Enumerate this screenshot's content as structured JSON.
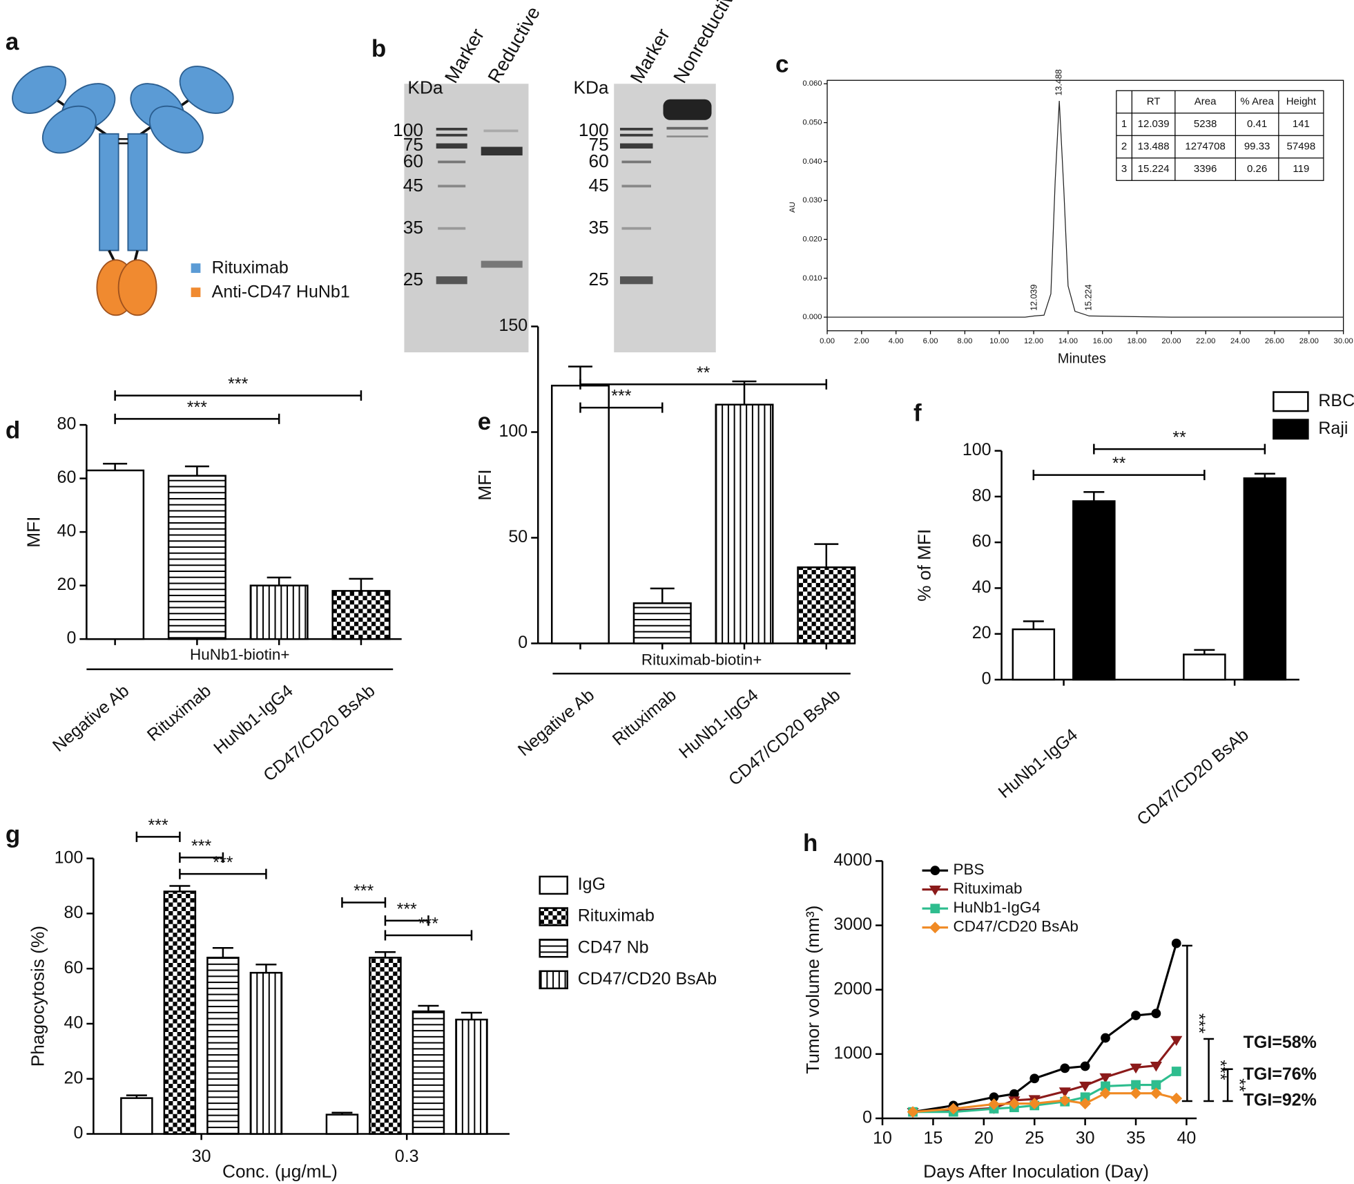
{
  "panel_labels": [
    "a",
    "b",
    "c",
    "d",
    "e",
    "f",
    "g",
    "h"
  ],
  "schematic": {
    "legend": [
      "Rituximab",
      "Anti-CD47 HuNb1"
    ],
    "colors": [
      "#5b9bd5",
      "#f08a30"
    ]
  },
  "gels": [
    {
      "unit": "KDa",
      "lanes": [
        "Marker",
        "Reductive"
      ],
      "markers": [
        "100",
        "75",
        "60",
        "45",
        "35",
        "25"
      ]
    },
    {
      "unit": "KDa",
      "lanes": [
        "Marker",
        "Nonreductive"
      ],
      "markers": [
        "100",
        "75",
        "60",
        "45",
        "35",
        "25"
      ]
    }
  ],
  "chart_data": [
    {
      "type": "line",
      "x_label": "Minutes",
      "y_label": "AU",
      "x": [
        0,
        5,
        11.5,
        12.039,
        12.6,
        13.0,
        13.25,
        13.488,
        13.75,
        14.0,
        14.4,
        15.224,
        20,
        30
      ],
      "values": [
        0,
        0,
        0,
        0.0003,
        0.0005,
        0.006,
        0.035,
        0.0556,
        0.033,
        0.008,
        0.0015,
        0.0003,
        0,
        0
      ],
      "color": "#222222",
      "xlim": [
        0,
        30
      ],
      "xticks": [
        {
          "value": 0,
          "label": "0.00"
        },
        {
          "value": 2,
          "label": "2.00"
        },
        {
          "value": 4,
          "label": "4.00"
        },
        {
          "value": 6,
          "label": "6.00"
        },
        {
          "value": 8,
          "label": "8.00"
        },
        {
          "value": 10,
          "label": "10.00"
        },
        {
          "value": 12,
          "label": "12.00"
        },
        {
          "value": 14,
          "label": "14.00"
        },
        {
          "value": 16,
          "label": "16.00"
        },
        {
          "value": 18,
          "label": "18.00"
        },
        {
          "value": 20,
          "label": "20.00"
        },
        {
          "value": 22,
          "label": "22.00"
        },
        {
          "value": 24,
          "label": "24.00"
        },
        {
          "value": 26,
          "label": "26.00"
        },
        {
          "value": 28,
          "label": "28.00"
        },
        {
          "value": 30,
          "label": "30.00"
        }
      ],
      "ylim": [
        -0.0035,
        0.06
      ],
      "yticks": [
        {
          "value": 0,
          "label": "0.000"
        },
        {
          "value": 0.01,
          "label": "0.010"
        },
        {
          "value": 0.02,
          "label": "0.020"
        },
        {
          "value": 0.03,
          "label": "0.030"
        },
        {
          "value": 0.04,
          "label": "0.040"
        },
        {
          "value": 0.05,
          "label": "0.050"
        },
        {
          "value": 0.06,
          "label": "0.060"
        }
      ],
      "peak_labels": [
        {
          "value": 12.039,
          "label": "12.039"
        },
        {
          "value": 13.488,
          "label": "13.488"
        },
        {
          "value": 15.224,
          "label": "15.224"
        }
      ],
      "table": {
        "header": [
          "RT",
          "Area",
          "% Area",
          "Height"
        ],
        "rows": [
          [
            "1",
            "12.039",
            "5238",
            "0.41",
            "141"
          ],
          [
            "2",
            "13.488",
            "1274708",
            "99.33",
            "57498"
          ],
          [
            "3",
            "15.224",
            "3396",
            "0.26",
            "119"
          ]
        ]
      }
    },
    {
      "type": "bar",
      "y_label": "MFI",
      "group_label": "HuNb1-biotin+",
      "categories": [
        "Negative Ab",
        "Rituximab",
        "HuNb1-IgG4",
        "CD47/CD20 BsAb"
      ],
      "values": [
        63,
        61,
        20,
        18
      ],
      "errors": [
        2.5,
        3.5,
        3,
        4.5
      ],
      "patterns": [
        "none",
        "horizontal",
        "vertical",
        "checker"
      ],
      "ylim": [
        0,
        80
      ],
      "yticks": [
        0,
        20,
        40,
        60,
        80
      ],
      "significance": [
        {
          "label": "***",
          "from": 0,
          "to": 3
        },
        {
          "label": "***",
          "from": 0,
          "to": 2
        }
      ]
    },
    {
      "type": "bar",
      "y_label": "MFI",
      "group_label": "Rituximab-biotin+",
      "categories": [
        "Negative Ab",
        "Rituximab",
        "HuNb1-IgG4",
        "CD47/CD20 BsAb"
      ],
      "values": [
        122,
        19,
        113,
        36
      ],
      "errors": [
        9,
        7,
        11,
        11
      ],
      "patterns": [
        "none",
        "horizontal",
        "vertical",
        "checker"
      ],
      "ylim": [
        0,
        150
      ],
      "yticks": [
        0,
        50,
        100,
        150
      ],
      "significance": [
        {
          "label": "**",
          "from": 0,
          "to": 3
        },
        {
          "label": "***",
          "from": 0,
          "to": 1
        }
      ]
    },
    {
      "type": "grouped_bar",
      "y_label": "% of MFI",
      "categories": [
        "HuNb1-IgG4",
        "CD47/CD20 BsAb"
      ],
      "series": [
        {
          "name": "RBC",
          "color": "#ffffff",
          "values": [
            22,
            11
          ],
          "errors": [
            3.5,
            2
          ]
        },
        {
          "name": "Raji",
          "color": "#000000",
          "values": [
            78,
            88
          ],
          "errors": [
            4,
            2
          ]
        }
      ],
      "ylim": [
        0,
        100
      ],
      "yticks": [
        0,
        20,
        40,
        60,
        80,
        100
      ],
      "significance": [
        {
          "label": "**",
          "from": [
            0,
            0
          ],
          "to": [
            0,
            1
          ]
        },
        {
          "label": "**",
          "from": [
            1,
            0
          ],
          "to": [
            1,
            1
          ]
        }
      ]
    },
    {
      "type": "grouped_bar",
      "y_label": "Phagocytosis (%)",
      "x_label": "Conc. (μg/mL)",
      "categories": [
        "30",
        "0.3"
      ],
      "series": [
        {
          "name": "IgG",
          "pattern": "none",
          "values": [
            13,
            7
          ],
          "errors": [
            1,
            0.7
          ]
        },
        {
          "name": "Rituximab",
          "pattern": "checker",
          "values": [
            88,
            64
          ],
          "errors": [
            2,
            2
          ]
        },
        {
          "name": "CD47 Nb",
          "pattern": "horizontal",
          "values": [
            64,
            44.5
          ],
          "errors": [
            3.5,
            2
          ]
        },
        {
          "name": "CD47/CD20 BsAb",
          "pattern": "vertical",
          "values": [
            58.5,
            41.5
          ],
          "errors": [
            3,
            2.5
          ]
        }
      ],
      "ylim": [
        0,
        100
      ],
      "yticks": [
        0,
        20,
        40,
        60,
        80,
        100
      ],
      "significance": [
        {
          "label": "***",
          "from": [
            0,
            0
          ],
          "to": [
            1,
            0
          ]
        },
        {
          "label": "***",
          "from": [
            2,
            0
          ],
          "to": [
            1,
            0
          ]
        },
        {
          "label": "***",
          "from": [
            3,
            0
          ],
          "to": [
            1,
            0
          ]
        },
        {
          "label": "***",
          "from": [
            0,
            1
          ],
          "to": [
            1,
            1
          ]
        },
        {
          "label": "***",
          "from": [
            2,
            1
          ],
          "to": [
            1,
            1
          ]
        },
        {
          "label": "***",
          "from": [
            3,
            1
          ],
          "to": [
            1,
            1
          ]
        }
      ]
    },
    {
      "type": "line",
      "y_label": "Tumor volume (mm³)",
      "x_label": "Days After Inoculation (Day)",
      "x": [
        13,
        17,
        21,
        23,
        25,
        28,
        30,
        32,
        35,
        37,
        39
      ],
      "series": [
        {
          "name": "PBS",
          "color": "#000000",
          "marker": "circle",
          "values": [
            100,
            200,
            330,
            380,
            620,
            780,
            810,
            1250,
            1600,
            1630,
            2720
          ]
        },
        {
          "name": "Rituximab",
          "color": "#8b1a1a",
          "marker": "triangle",
          "values": [
            100,
            120,
            160,
            280,
            300,
            420,
            510,
            640,
            790,
            820,
            1220
          ]
        },
        {
          "name": "HuNb1-IgG4",
          "color": "#2ebd8e",
          "marker": "square",
          "values": [
            100,
            100,
            150,
            170,
            200,
            260,
            330,
            500,
            520,
            520,
            730
          ]
        },
        {
          "name": "CD47/CD20 BsAb",
          "color": "#f08a24",
          "marker": "diamond",
          "values": [
            100,
            150,
            220,
            230,
            230,
            280,
            230,
            390,
            390,
            390,
            310
          ]
        }
      ],
      "xlim": [
        10,
        41
      ],
      "xticks": [
        10,
        15,
        20,
        25,
        30,
        35,
        40
      ],
      "ylim": [
        0,
        4000
      ],
      "yticks": [
        0,
        1000,
        2000,
        3000,
        4000
      ],
      "significance": [
        {
          "label": "***"
        },
        {
          "label": "***"
        },
        {
          "label": "**"
        }
      ],
      "annotations": [
        "TGI=58%",
        "TGI=76%",
        "TGI=92%"
      ],
      "annotation_color": "#e8312f"
    }
  ]
}
